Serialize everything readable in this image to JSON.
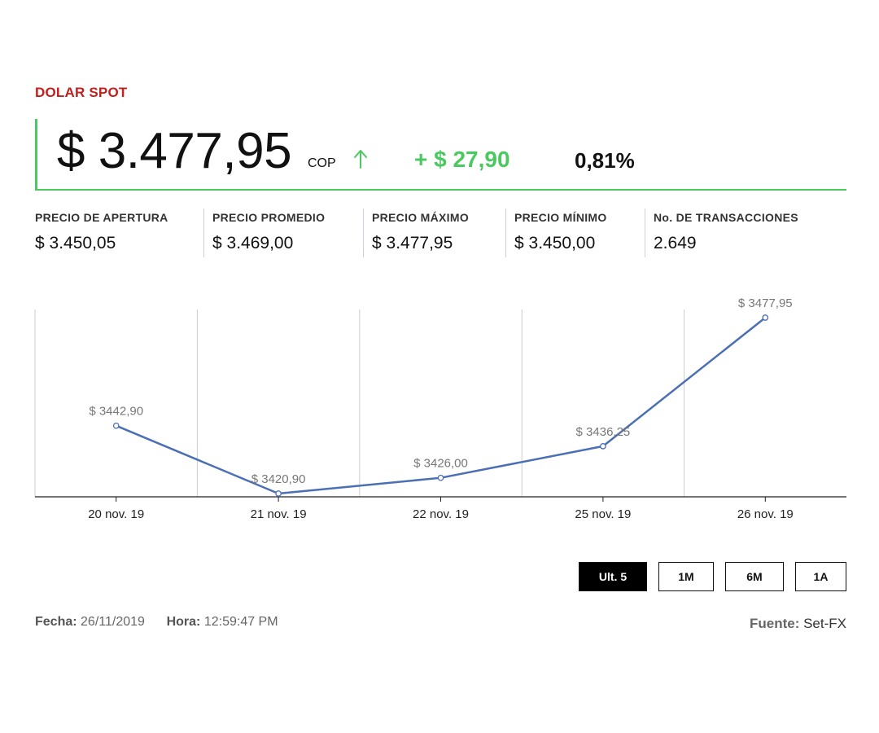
{
  "header": {
    "title": "DOLAR SPOT",
    "price": "$ 3.477,95",
    "currency": "COP",
    "arrow_icon": "arrow-up-icon",
    "change": "+ $ 27,90",
    "percent": "0,81%"
  },
  "stats": [
    {
      "label": "PRECIO DE APERTURA",
      "value": "$ 3.450,05"
    },
    {
      "label": "PRECIO PROMEDIO",
      "value": "$ 3.469,00"
    },
    {
      "label": "PRECIO MÁXIMO",
      "value": "$ 3.477,95"
    },
    {
      "label": "PRECIO MÍNIMO",
      "value": "$ 3.450,00"
    },
    {
      "label": "No. DE TRANSACCIONES",
      "value": "2.649"
    }
  ],
  "chart_data": {
    "type": "line",
    "categories": [
      "20 nov. 19",
      "21 nov. 19",
      "22 nov. 19",
      "25 nov. 19",
      "26 nov. 19"
    ],
    "values": [
      3442.9,
      3420.9,
      3426.0,
      3436.25,
      3477.95
    ],
    "data_labels": [
      "$ 3442,90",
      "$ 3420,90",
      "$ 3426,00",
      "$ 3436,25",
      "$ 3477,95"
    ],
    "title": "",
    "xlabel": "",
    "ylabel": "",
    "ylim": [
      3420.9,
      3477.95
    ],
    "grid": "vertical",
    "line_color": "#4b6fb5"
  },
  "range_buttons": [
    {
      "label": "Ult. 5",
      "active": true
    },
    {
      "label": "1M",
      "active": false
    },
    {
      "label": "6M",
      "active": false
    },
    {
      "label": "1A",
      "active": false
    }
  ],
  "footer": {
    "date_label": "Fecha:",
    "date_value": "26/11/2019",
    "time_label": "Hora:",
    "time_value": "12:59:47 PM",
    "source_label": "Fuente:",
    "source_value": "Set-FX"
  },
  "colors": {
    "title": "#c0201e",
    "positive": "#4bc85f"
  }
}
